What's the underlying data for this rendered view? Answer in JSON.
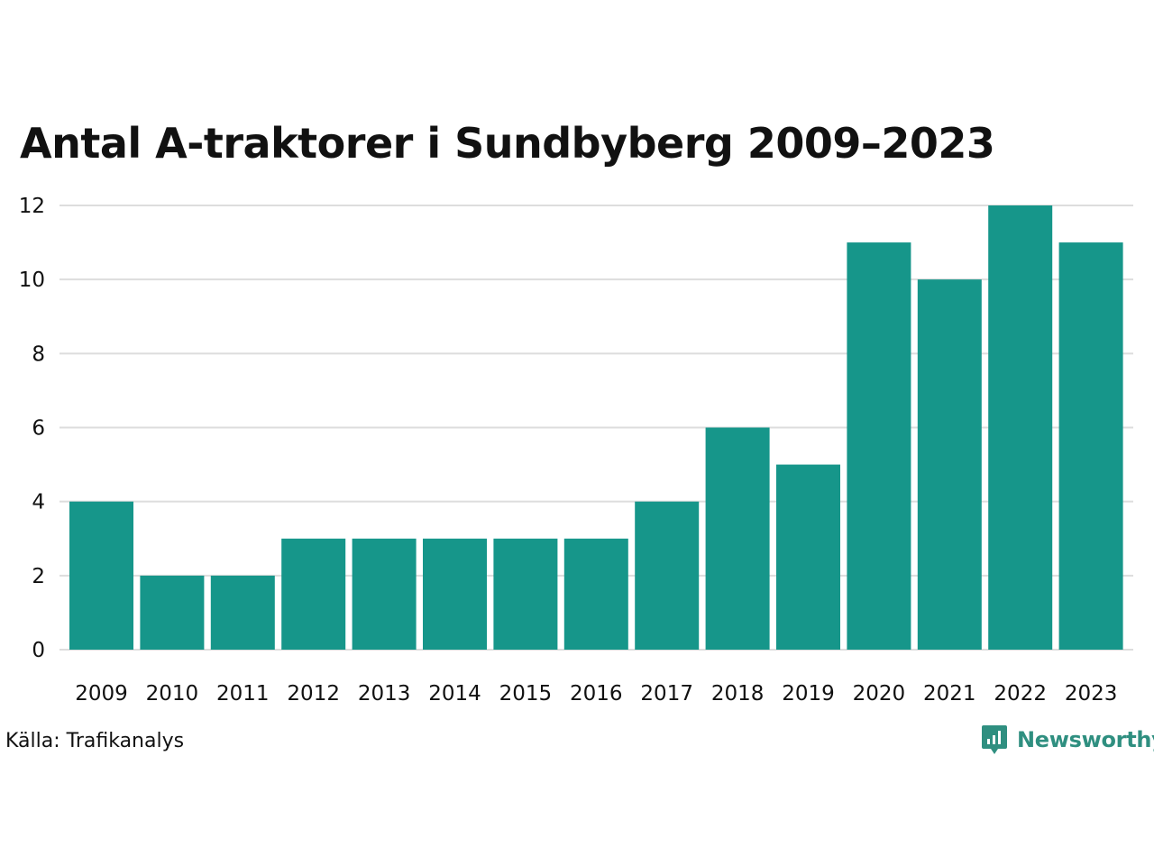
{
  "chart_data": {
    "type": "bar",
    "title": "Antal A-traktorer i Sundbyberg 2009–2023",
    "categories": [
      "2009",
      "2010",
      "2011",
      "2012",
      "2013",
      "2014",
      "2015",
      "2016",
      "2017",
      "2018",
      "2019",
      "2020",
      "2021",
      "2022",
      "2023"
    ],
    "values": [
      4,
      2,
      2,
      3,
      3,
      3,
      3,
      3,
      4,
      6,
      5,
      11,
      10,
      12,
      11
    ],
    "yticks": [
      0,
      2,
      4,
      6,
      8,
      10,
      12
    ],
    "ylim": [
      0,
      12
    ],
    "xlabel": "",
    "ylabel": "",
    "grid": true,
    "bar_color": "#16968a",
    "grid_color": "#dddddd"
  },
  "source": "Källa: Trafikanalys",
  "brand": {
    "name": "Newsworthy",
    "color": "#2f8f80",
    "icon": "newsworthy-logo-icon"
  }
}
